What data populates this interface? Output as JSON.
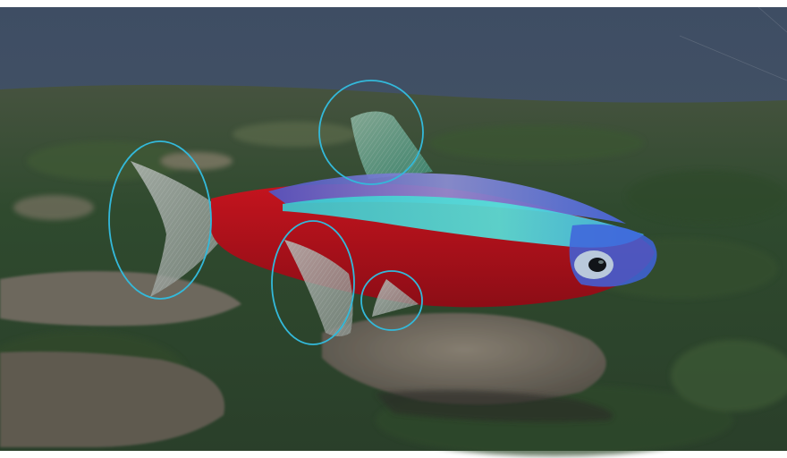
{
  "scene": {
    "subject": "cardinal-tetra-fish",
    "highlighted_fins": [
      "caudal-fin",
      "dorsal-fin",
      "anal-fin",
      "pelvic-fin"
    ],
    "colors": {
      "water": "#3d4b5d",
      "seabed_green": "#2f4a2c",
      "rock": "#6e6a60",
      "fish_red": "#b3121b",
      "fish_stripe_cyan": "#38d6d2",
      "fish_stripe_blue": "#4a5ed8",
      "fin_grey": "#a9b0ad",
      "highlight_outline": "#32b8d8"
    }
  }
}
